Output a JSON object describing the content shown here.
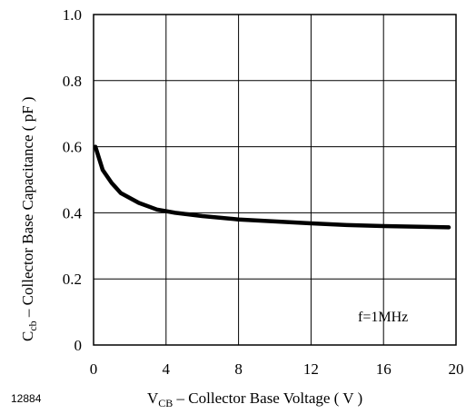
{
  "figure_id": "12884",
  "chart_data": {
    "type": "line",
    "title": "",
    "xlabel": {
      "main": "V",
      "sub": "CB",
      "rest": " – Collector Base Voltage ( V )"
    },
    "ylabel": {
      "main": "C",
      "sub": "cb",
      "rest": " – Collector Base Capacitance ( pF )"
    },
    "xlim": [
      0,
      20
    ],
    "ylim": [
      0,
      1.0
    ],
    "x_ticks": [
      0,
      4,
      8,
      12,
      16,
      20
    ],
    "y_ticks": [
      "0",
      "0.2",
      "0.4",
      "0.6",
      "0.8",
      "1.0"
    ],
    "y_tick_values": [
      0,
      0.2,
      0.4,
      0.6,
      0.8,
      1.0
    ],
    "grid": true,
    "annotation": "f=1MHz",
    "series": [
      {
        "x": [
          0.1,
          0.5,
          1.0,
          1.5,
          2.5,
          3.5,
          4.5,
          6,
          8,
          10,
          12,
          14,
          16,
          18,
          19.6
        ],
        "y": [
          0.6,
          0.53,
          0.49,
          0.46,
          0.43,
          0.41,
          0.4,
          0.39,
          0.38,
          0.374,
          0.368,
          0.363,
          0.36,
          0.358,
          0.356
        ]
      }
    ]
  }
}
